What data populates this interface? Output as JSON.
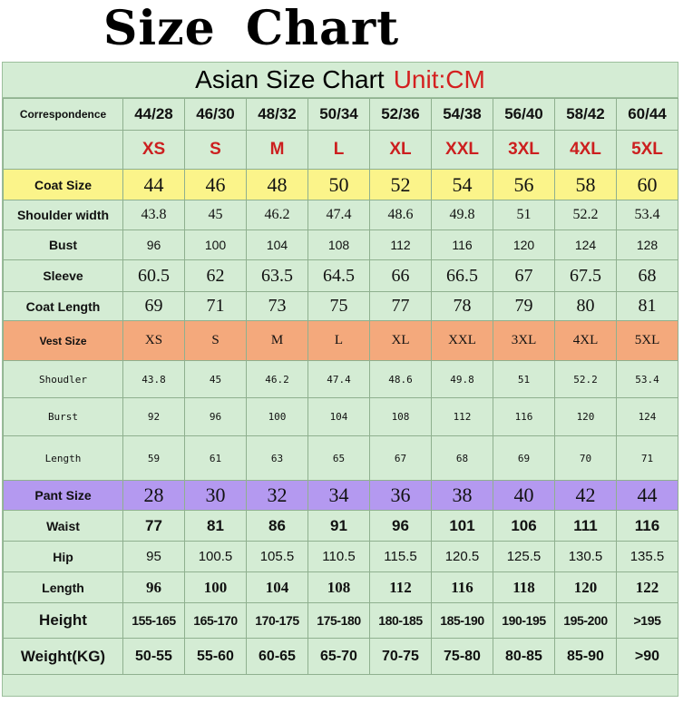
{
  "page_title": "Size Chart",
  "header": {
    "title": "Asian Size Chart",
    "unit": "Unit:CM"
  },
  "rows": {
    "correspondence": {
      "label": "Correspondence",
      "values": [
        "44/28",
        "46/30",
        "48/32",
        "50/34",
        "52/36",
        "54/38",
        "56/40",
        "58/42",
        "60/44"
      ]
    },
    "size_labels": {
      "label": "",
      "values": [
        "XS",
        "S",
        "M",
        "L",
        "XL",
        "XXL",
        "3XL",
        "4XL",
        "5XL"
      ]
    },
    "coat_size": {
      "label": "Coat Size",
      "values": [
        "44",
        "46",
        "48",
        "50",
        "52",
        "54",
        "56",
        "58",
        "60"
      ]
    },
    "shoulder_width": {
      "label": "Shoulder width",
      "values": [
        "43.8",
        "45",
        "46.2",
        "47.4",
        "48.6",
        "49.8",
        "51",
        "52.2",
        "53.4"
      ]
    },
    "bust": {
      "label": "Bust",
      "values": [
        "96",
        "100",
        "104",
        "108",
        "112",
        "116",
        "120",
        "124",
        "128"
      ]
    },
    "sleeve": {
      "label": "Sleeve",
      "values": [
        "60.5",
        "62",
        "63.5",
        "64.5",
        "66",
        "66.5",
        "67",
        "67.5",
        "68"
      ]
    },
    "coat_length": {
      "label": "Coat Length",
      "values": [
        "69",
        "71",
        "73",
        "75",
        "77",
        "78",
        "79",
        "80",
        "81"
      ]
    },
    "vest_size": {
      "label": "Vest Size",
      "values": [
        "XS",
        "S",
        "M",
        "L",
        "XL",
        "XXL",
        "3XL",
        "4XL",
        "5XL"
      ]
    },
    "vest_shoulder": {
      "label": "Shoudler",
      "values": [
        "43.8",
        "45",
        "46.2",
        "47.4",
        "48.6",
        "49.8",
        "51",
        "52.2",
        "53.4"
      ]
    },
    "vest_burst": {
      "label": "Burst",
      "values": [
        "92",
        "96",
        "100",
        "104",
        "108",
        "112",
        "116",
        "120",
        "124"
      ]
    },
    "vest_length": {
      "label": "Length",
      "values": [
        "59",
        "61",
        "63",
        "65",
        "67",
        "68",
        "69",
        "70",
        "71"
      ]
    },
    "pant_size": {
      "label": "Pant Size",
      "values": [
        "28",
        "30",
        "32",
        "34",
        "36",
        "38",
        "40",
        "42",
        "44"
      ]
    },
    "waist": {
      "label": "Waist",
      "values": [
        "77",
        "81",
        "86",
        "91",
        "96",
        "101",
        "106",
        "111",
        "116"
      ]
    },
    "hip": {
      "label": "Hip",
      "values": [
        "95",
        "100.5",
        "105.5",
        "110.5",
        "115.5",
        "120.5",
        "125.5",
        "130.5",
        "135.5"
      ]
    },
    "pant_length": {
      "label": "Length",
      "values": [
        "96",
        "100",
        "104",
        "108",
        "112",
        "116",
        "118",
        "120",
        "122"
      ]
    },
    "height": {
      "label": "Height",
      "values": [
        "155-165",
        "165-170",
        "170-175",
        "175-180",
        "180-185",
        "185-190",
        "190-195",
        "195-200",
        ">195"
      ]
    },
    "weight": {
      "label": "Weight(KG)",
      "values": [
        "50-55",
        "55-60",
        "60-65",
        "65-70",
        "70-75",
        "75-80",
        "80-85",
        "85-90",
        ">90"
      ]
    }
  },
  "colors": {
    "background": "#d4ecd4",
    "coat_highlight": "#fbf48a",
    "vest_highlight": "#f4a97c",
    "pant_highlight": "#b499f0",
    "size_label_red": "#cc1f1f",
    "unit_red": "#d42020"
  }
}
